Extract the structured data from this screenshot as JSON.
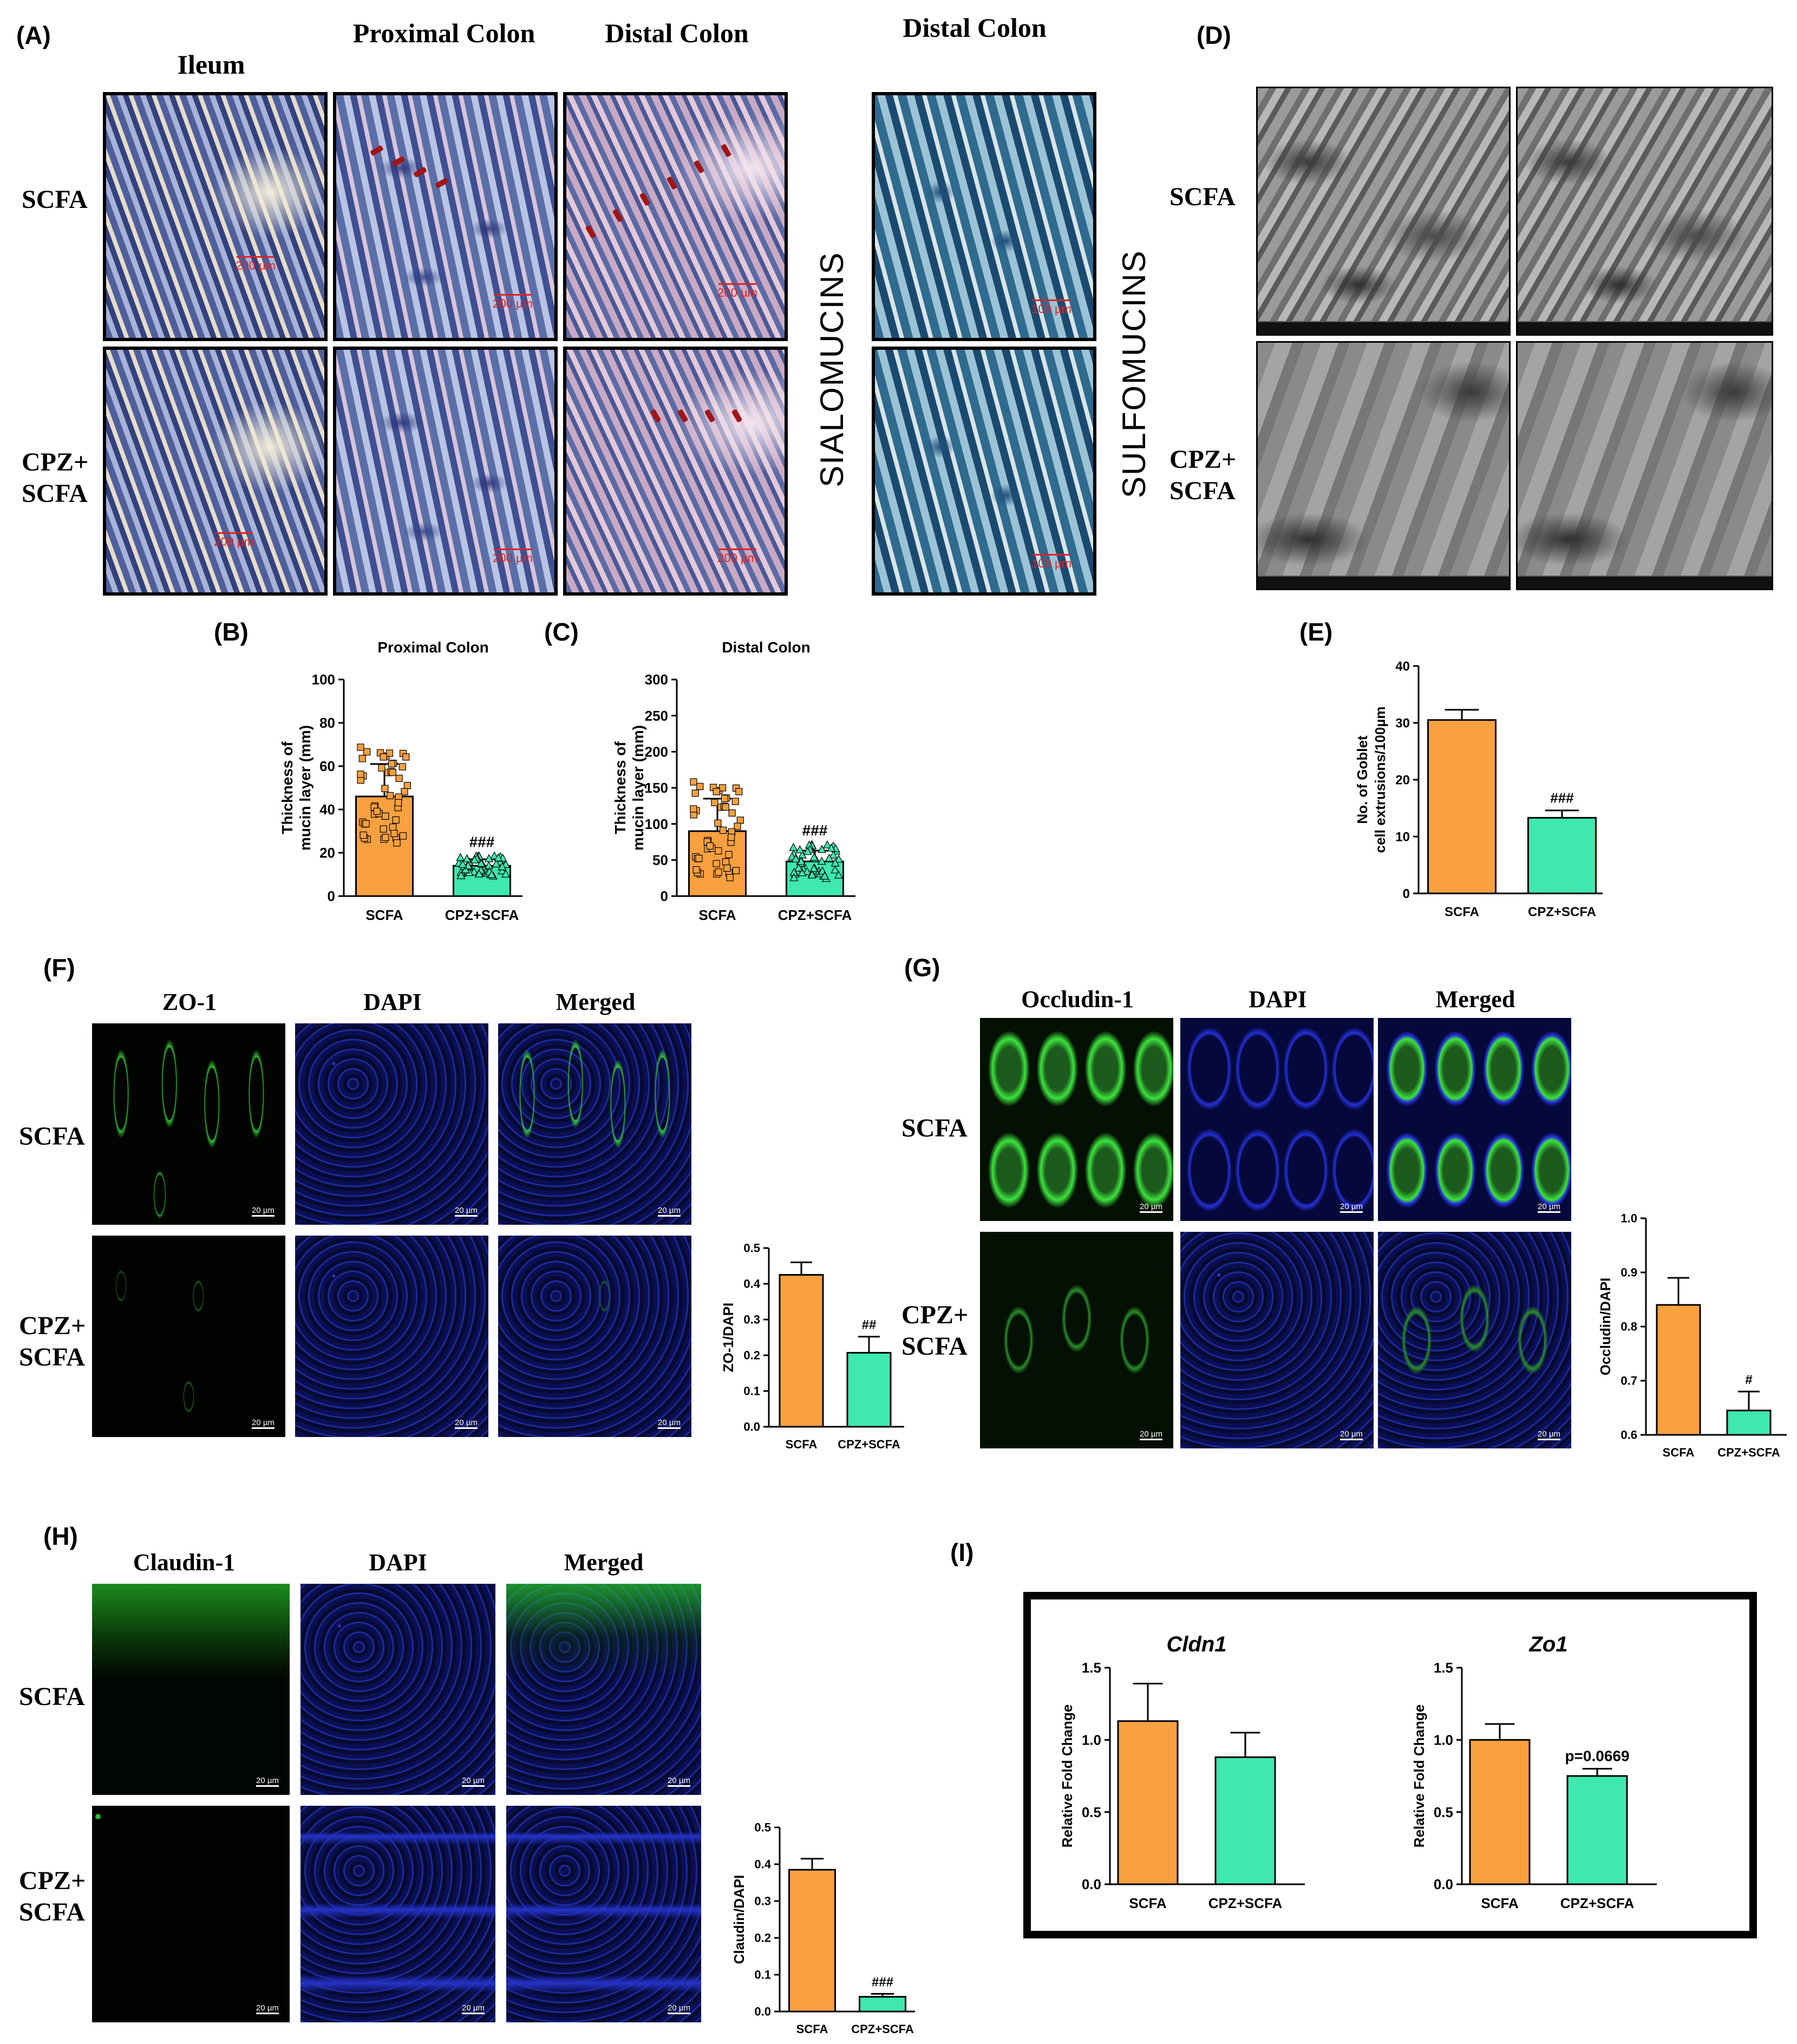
{
  "panel_letters": {
    "A": "(A)",
    "B": "(B)",
    "C": "(C)",
    "D": "(D)",
    "E": "(E)",
    "F": "(F)",
    "G": "(G)",
    "H": "(H)",
    "I": "(I)"
  },
  "panel_a": {
    "col_headers": [
      "Ileum",
      "Proximal Colon",
      "Distal Colon",
      "Distal Colon"
    ],
    "row_labels": [
      "SCFA",
      "CPZ+ SCFA"
    ],
    "side_labels": [
      "SIALOMUCINS",
      "SULFOMUCINS"
    ],
    "scale_labels": [
      "200 µm",
      "200 µm",
      "200 µm",
      "100 µm",
      "200 µm",
      "200 µm",
      "200 µm",
      "100 µm"
    ]
  },
  "panel_d": {
    "row_labels": [
      "SCFA",
      "CPZ+ SCFA"
    ]
  },
  "panel_f": {
    "col_headers": [
      "ZO-1",
      "DAPI",
      "Merged"
    ],
    "row_labels": [
      "SCFA",
      "CPZ+ SCFA"
    ],
    "scale": "20 µm"
  },
  "panel_g": {
    "col_headers": [
      "Occludin-1",
      "DAPI",
      "Merged"
    ],
    "row_labels": [
      "SCFA",
      "CPZ+ SCFA"
    ],
    "scale": "20 µm"
  },
  "panel_h": {
    "col_headers": [
      "Claudin-1",
      "DAPI",
      "Merged"
    ],
    "row_labels": [
      "SCFA",
      "CPZ+ SCFA"
    ],
    "scale": "20 µm"
  },
  "colors": {
    "scfa": "#f9a03f",
    "cpz_scfa": "#3ee8b0",
    "border": "#000000"
  },
  "chart_data": [
    {
      "id": "B",
      "type": "bar",
      "title": "Proximal Colon",
      "ylabel": "Thickness of mucin layer (mm)",
      "categories": [
        "SCFA",
        "CPZ+SCFA"
      ],
      "values": [
        46,
        14
      ],
      "errors": [
        15,
        3
      ],
      "ylim": [
        0,
        100
      ],
      "yticks": [
        0,
        20,
        40,
        60,
        80,
        100
      ],
      "annotations": [
        {
          "category": "CPZ+SCFA",
          "text": "###"
        }
      ],
      "scatter_overlay": true
    },
    {
      "id": "C",
      "type": "bar",
      "title": "Distal Colon",
      "ylabel": "Thickness of mucin layer (mm)",
      "categories": [
        "SCFA",
        "CPZ+SCFA"
      ],
      "values": [
        90,
        48
      ],
      "errors": [
        45,
        15
      ],
      "ylim": [
        0,
        300
      ],
      "yticks": [
        0,
        50,
        100,
        150,
        200,
        250,
        300
      ],
      "annotations": [
        {
          "category": "CPZ+SCFA",
          "text": "###"
        }
      ],
      "scatter_overlay": true
    },
    {
      "id": "E",
      "type": "bar",
      "title": "",
      "ylabel": "No. of Goblet cell extrusions/100µm",
      "categories": [
        "SCFA",
        "CPZ+SCFA"
      ],
      "values": [
        30.5,
        13.3
      ],
      "errors": [
        1.8,
        1.3
      ],
      "ylim": [
        0,
        40
      ],
      "yticks": [
        0,
        10,
        20,
        30,
        40
      ],
      "annotations": [
        {
          "category": "CPZ+SCFA",
          "text": "###"
        }
      ]
    },
    {
      "id": "F",
      "type": "bar",
      "title": "",
      "ylabel": "ZO-1/DAPI",
      "categories": [
        "SCFA",
        "CPZ+SCFA"
      ],
      "values": [
        0.425,
        0.207
      ],
      "errors": [
        0.035,
        0.045
      ],
      "ylim": [
        0,
        0.5
      ],
      "yticks": [
        0.0,
        0.1,
        0.2,
        0.3,
        0.4,
        0.5
      ],
      "annotations": [
        {
          "category": "CPZ+SCFA",
          "text": "##"
        }
      ]
    },
    {
      "id": "G",
      "type": "bar",
      "title": "",
      "ylabel": "Occludin/DAPI",
      "categories": [
        "SCFA",
        "CPZ+SCFA"
      ],
      "values": [
        0.84,
        0.645
      ],
      "errors": [
        0.05,
        0.035
      ],
      "ylim": [
        0.6,
        1.0
      ],
      "yticks": [
        0.6,
        0.7,
        0.8,
        0.9,
        1.0
      ],
      "annotations": [
        {
          "category": "CPZ+SCFA",
          "text": "#"
        }
      ]
    },
    {
      "id": "H",
      "type": "bar",
      "title": "",
      "ylabel": "Claudin/DAPI",
      "categories": [
        "SCFA",
        "CPZ+SCFA"
      ],
      "values": [
        0.385,
        0.04
      ],
      "errors": [
        0.03,
        0.008
      ],
      "ylim": [
        0,
        0.5
      ],
      "yticks": [
        0.0,
        0.1,
        0.2,
        0.3,
        0.4,
        0.5
      ],
      "annotations": [
        {
          "category": "CPZ+SCFA",
          "text": "###"
        }
      ]
    },
    {
      "id": "I1",
      "type": "bar",
      "title": "Cldn1",
      "ylabel": "Relative Fold Change",
      "categories": [
        "SCFA",
        "CPZ+SCFA"
      ],
      "values": [
        1.13,
        0.88
      ],
      "errors": [
        0.26,
        0.17
      ],
      "ylim": [
        0,
        1.5
      ],
      "yticks": [
        0.0,
        0.5,
        1.0,
        1.5
      ],
      "annotations": []
    },
    {
      "id": "I2",
      "type": "bar",
      "title": "Zo1",
      "ylabel": "Relative Fold Change",
      "categories": [
        "SCFA",
        "CPZ+SCFA"
      ],
      "values": [
        1.0,
        0.75
      ],
      "errors": [
        0.11,
        0.05
      ],
      "ylim": [
        0,
        1.5
      ],
      "yticks": [
        0.0,
        0.5,
        1.0,
        1.5
      ],
      "annotations": [
        {
          "category": "CPZ+SCFA",
          "text": "p=0.0669"
        }
      ]
    }
  ]
}
